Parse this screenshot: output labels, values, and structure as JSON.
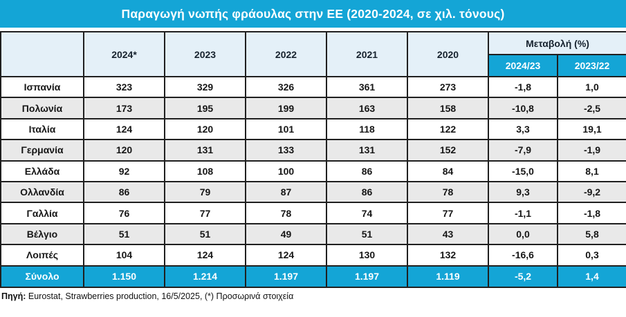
{
  "chart_data": {
    "type": "table",
    "title": "Παραγωγή νωπής φράουλας στην ΕΕ (2020-2024, σε χιλ. τόνους)",
    "year_columns": [
      "2024*",
      "2023",
      "2022",
      "2021",
      "2020"
    ],
    "change_group_header": "Μεταβολή (%)",
    "change_columns": [
      "2024/23",
      "2023/22"
    ],
    "rows": [
      {
        "label": "Ισπανία",
        "values": [
          "323",
          "329",
          "326",
          "361",
          "273",
          "-1,8",
          "1,0"
        ]
      },
      {
        "label": "Πολωνία",
        "values": [
          "173",
          "195",
          "199",
          "163",
          "158",
          "-10,8",
          "-2,5"
        ]
      },
      {
        "label": "Ιταλία",
        "values": [
          "124",
          "120",
          "101",
          "118",
          "122",
          "3,3",
          "19,1"
        ]
      },
      {
        "label": "Γερμανία",
        "values": [
          "120",
          "131",
          "133",
          "131",
          "152",
          "-7,9",
          "-1,9"
        ]
      },
      {
        "label": "Ελλάδα",
        "values": [
          "92",
          "108",
          "100",
          "86",
          "84",
          "-15,0",
          "8,1"
        ]
      },
      {
        "label": "Ολλανδία",
        "values": [
          "86",
          "79",
          "87",
          "86",
          "78",
          "9,3",
          "-9,2"
        ]
      },
      {
        "label": "Γαλλία",
        "values": [
          "76",
          "77",
          "78",
          "74",
          "77",
          "-1,1",
          "-1,8"
        ]
      },
      {
        "label": "Βέλγιο",
        "values": [
          "51",
          "51",
          "49",
          "51",
          "43",
          "0,0",
          "5,8"
        ]
      },
      {
        "label": "Λοιπές",
        "values": [
          "104",
          "124",
          "124",
          "130",
          "132",
          "-16,6",
          "0,3"
        ]
      }
    ],
    "total_row": {
      "label": "Σύνολο",
      "values": [
        "1.150",
        "1.214",
        "1.197",
        "1.197",
        "1.119",
        "-5,2",
        "1,4"
      ]
    }
  },
  "footer": {
    "source_label": "Πηγή:",
    "source_text": " Eurostat, Strawberries production, 16/5/2025, (*) Προσωρινά στοιχεία"
  },
  "colors": {
    "accent_cyan": "#14a5d6",
    "header_light_blue": "#e4f0f8",
    "row_alt_gray": "#e9e9e9",
    "border_dark": "#1f1f1f",
    "header_text_navy": "#16222e"
  }
}
